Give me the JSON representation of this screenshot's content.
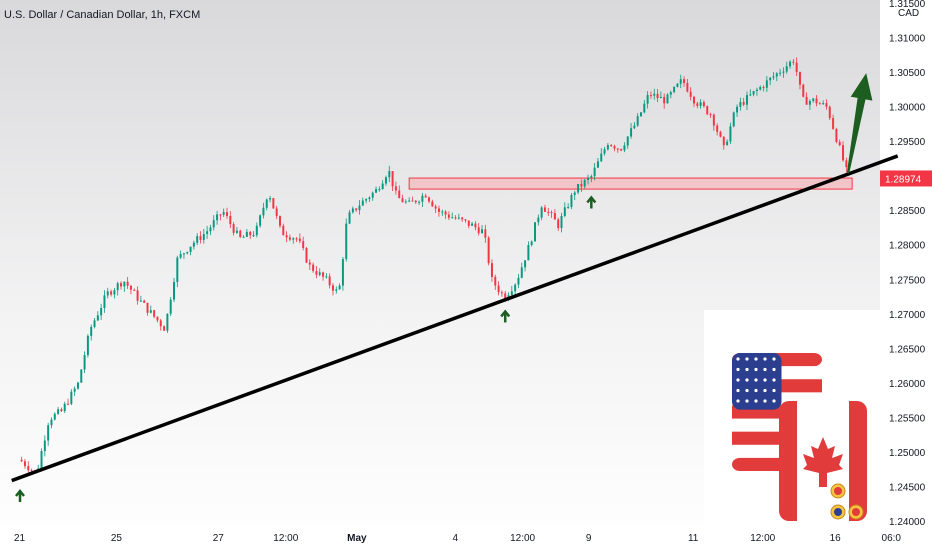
{
  "header": {
    "title": "U.S. Dollar / Canadian Dollar, 1h, FXCM"
  },
  "axis": {
    "currency": "CAD"
  },
  "colors": {
    "up": "#089981",
    "down": "#f23645",
    "trendline": "#000000",
    "arrow": "#1b5e20",
    "zone_fill": "#f7a8ad",
    "zone_stroke": "#f23645",
    "last_price_bg": "#f23645"
  },
  "overlay": {
    "flags_icon": "usa-canada-flags-icon"
  },
  "chart_data": {
    "type": "candlestick",
    "title": "U.S. Dollar / Canadian Dollar, 1h, FXCM",
    "ylim": [
      1.24,
      1.315
    ],
    "y_ticks": [
      "1.31500",
      "1.31000",
      "1.30500",
      "1.30000",
      "1.29500",
      "1.29000",
      "1.28500",
      "1.28000",
      "1.27500",
      "1.27000",
      "1.26500",
      "1.26000",
      "1.25500",
      "1.25000",
      "1.24500",
      "1.24000"
    ],
    "x_ticks": [
      {
        "label": "21",
        "t": 0
      },
      {
        "label": "25",
        "t": 0.117
      },
      {
        "label": "27",
        "t": 0.24
      },
      {
        "label": "12:00",
        "t": 0.324
      },
      {
        "label": "May",
        "t": 0.406,
        "bold": true
      },
      {
        "label": "4",
        "t": 0.526
      },
      {
        "label": "12:00",
        "t": 0.61
      },
      {
        "label": "9",
        "t": 0.687
      },
      {
        "label": "11",
        "t": 0.814
      },
      {
        "label": "12:00",
        "t": 0.9
      },
      {
        "label": "16",
        "t": 0.985
      },
      {
        "label": "06:0",
        "t": 1.055
      }
    ],
    "last_price": "1.28974",
    "path_points": [
      [
        0,
        1.249
      ],
      [
        0.02,
        1.247
      ],
      [
        0.035,
        1.255
      ],
      [
        0.05,
        1.256
      ],
      [
        0.07,
        1.26
      ],
      [
        0.085,
        1.268
      ],
      [
        0.105,
        1.273
      ],
      [
        0.125,
        1.275
      ],
      [
        0.145,
        1.272
      ],
      [
        0.16,
        1.27
      ],
      [
        0.175,
        1.268
      ],
      [
        0.19,
        1.278
      ],
      [
        0.205,
        1.28
      ],
      [
        0.225,
        1.282
      ],
      [
        0.245,
        1.285
      ],
      [
        0.265,
        1.281
      ],
      [
        0.285,
        1.282
      ],
      [
        0.3,
        1.288
      ],
      [
        0.315,
        1.282
      ],
      [
        0.335,
        1.281
      ],
      [
        0.35,
        1.277
      ],
      [
        0.37,
        1.275
      ],
      [
        0.385,
        1.273
      ],
      [
        0.395,
        1.284
      ],
      [
        0.41,
        1.286
      ],
      [
        0.43,
        1.288
      ],
      [
        0.445,
        1.291
      ],
      [
        0.455,
        1.287
      ],
      [
        0.47,
        1.286
      ],
      [
        0.49,
        1.2875
      ],
      [
        0.505,
        1.285
      ],
      [
        0.525,
        1.284
      ],
      [
        0.545,
        1.283
      ],
      [
        0.56,
        1.282
      ],
      [
        0.57,
        1.275
      ],
      [
        0.585,
        1.2725
      ],
      [
        0.6,
        1.275
      ],
      [
        0.615,
        1.28
      ],
      [
        0.63,
        1.286
      ],
      [
        0.65,
        1.283
      ],
      [
        0.67,
        1.288
      ],
      [
        0.69,
        1.29
      ],
      [
        0.71,
        1.295
      ],
      [
        0.725,
        1.294
      ],
      [
        0.745,
        1.298
      ],
      [
        0.76,
        1.302
      ],
      [
        0.78,
        1.301
      ],
      [
        0.8,
        1.304
      ],
      [
        0.815,
        1.301
      ],
      [
        0.835,
        1.299
      ],
      [
        0.85,
        1.294
      ],
      [
        0.865,
        1.3
      ],
      [
        0.885,
        1.302
      ],
      [
        0.905,
        1.304
      ],
      [
        0.925,
        1.306
      ],
      [
        0.935,
        1.307
      ],
      [
        0.945,
        1.301
      ],
      [
        0.96,
        1.301
      ],
      [
        0.975,
        1.3
      ],
      [
        0.99,
        1.294
      ],
      [
        1.0,
        1.29
      ]
    ],
    "support_zone": {
      "y_low": 1.2882,
      "y_high": 1.2898,
      "t_start": 0.47,
      "t_end": 1.005
    },
    "trendline": [
      [
        -0.01,
        1.246
      ],
      [
        1.06,
        1.293
      ]
    ],
    "forecast_arrow": {
      "from": [
        1.0,
        1.2905
      ],
      "to": [
        1.022,
        1.305
      ]
    },
    "pivot_arrows": [
      [
        0,
        1.2455
      ],
      [
        0.586,
        1.2715
      ],
      [
        0.69,
        1.288
      ]
    ]
  }
}
